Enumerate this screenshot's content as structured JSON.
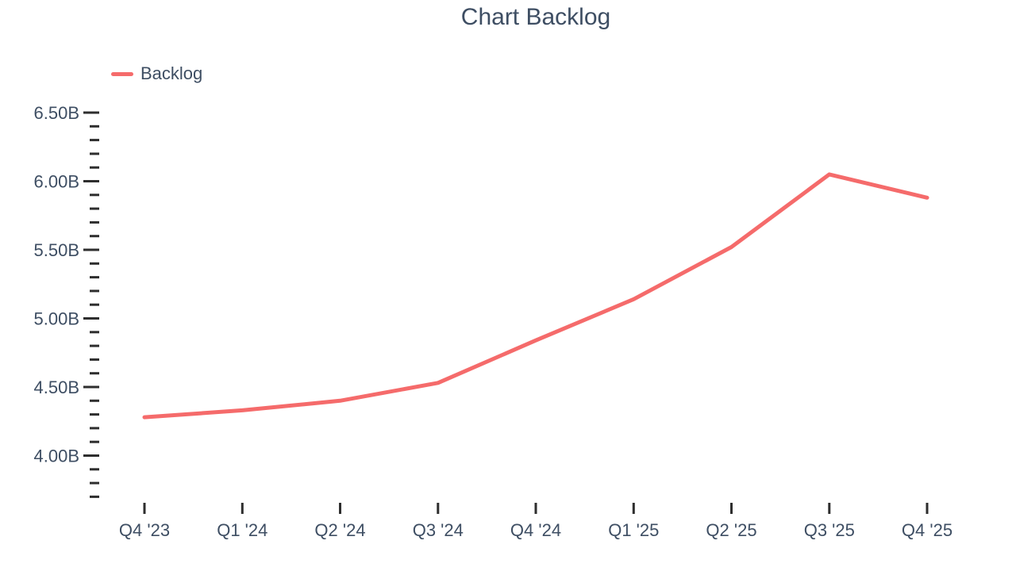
{
  "title": "Chart Backlog",
  "colors": {
    "background": "#ffffff",
    "text": "#3e4e63",
    "tick": "#2e2e2e",
    "line": "#f56b6b"
  },
  "legend": {
    "items": [
      {
        "label": "Backlog",
        "color": "#f56b6b"
      }
    ]
  },
  "chart_data": {
    "type": "line",
    "title": "Chart Backlog",
    "categories": [
      "Q4 '23",
      "Q1 '24",
      "Q2 '24",
      "Q3 '24",
      "Q4 '24",
      "Q1 '25",
      "Q2 '25",
      "Q3 '25",
      "Q4 '25"
    ],
    "series": [
      {
        "name": "Backlog",
        "color": "#f56b6b",
        "values": [
          4.28,
          4.33,
          4.4,
          4.53,
          4.84,
          5.14,
          5.52,
          6.05,
          5.88
        ]
      }
    ],
    "unit": "B",
    "xlabel": "",
    "ylabel": "",
    "ylim": [
      3.7,
      6.5
    ],
    "y_major_ticks": [
      4.0,
      4.5,
      5.0,
      5.5,
      6.0,
      6.5
    ],
    "y_tick_labels": [
      "4.00B",
      "4.50B",
      "5.00B",
      "5.50B",
      "6.00B",
      "6.50B"
    ],
    "y_minor_step": 0.1,
    "grid": false,
    "axis_lines": false,
    "legend_position": "top-left"
  }
}
